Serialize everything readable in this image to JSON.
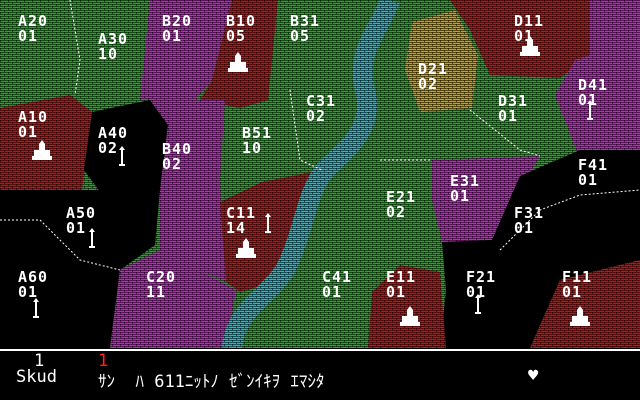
{
  "colors": {
    "green": "#22aa22",
    "magenta": "#cc22cc",
    "red": "#cc1111",
    "black": "#000000",
    "river": "#22bbcc",
    "yellow": "#c8a010"
  },
  "regions": [
    {
      "id": "A20",
      "units": "01",
      "owner": "green"
    },
    {
      "id": "A30",
      "units": "10",
      "owner": "green"
    },
    {
      "id": "B20",
      "units": "01",
      "owner": "magenta"
    },
    {
      "id": "B10",
      "units": "05",
      "owner": "red"
    },
    {
      "id": "B31",
      "units": "05",
      "owner": "green"
    },
    {
      "id": "D21",
      "units": "02",
      "owner": "yellow"
    },
    {
      "id": "D11",
      "units": "01",
      "owner": "red"
    },
    {
      "id": "D41",
      "units": "01",
      "owner": "magenta"
    },
    {
      "id": "A10",
      "units": "01",
      "owner": "red"
    },
    {
      "id": "A40",
      "units": "02",
      "owner": "black"
    },
    {
      "id": "C31",
      "units": "02",
      "owner": "green"
    },
    {
      "id": "D31",
      "units": "01",
      "owner": "green"
    },
    {
      "id": "B40",
      "units": "02",
      "owner": "magenta"
    },
    {
      "id": "B51",
      "units": "10",
      "owner": "green"
    },
    {
      "id": "F41",
      "units": "01",
      "owner": "black"
    },
    {
      "id": "E31",
      "units": "01",
      "owner": "magenta"
    },
    {
      "id": "A50",
      "units": "01",
      "owner": "black"
    },
    {
      "id": "E21",
      "units": "02",
      "owner": "green"
    },
    {
      "id": "F31",
      "units": "01",
      "owner": "black"
    },
    {
      "id": "C11",
      "units": "14",
      "owner": "red"
    },
    {
      "id": "A60",
      "units": "01",
      "owner": "black"
    },
    {
      "id": "C20",
      "units": "11",
      "owner": "magenta"
    },
    {
      "id": "C41",
      "units": "01",
      "owner": "green"
    },
    {
      "id": "E11",
      "units": "01",
      "owner": "red"
    },
    {
      "id": "F21",
      "units": "01",
      "owner": "black"
    },
    {
      "id": "F11",
      "units": "01",
      "owner": "red"
    }
  ],
  "status": {
    "counter_white": "1",
    "counter_red": "1",
    "message_player": "Skud",
    "message_rest": "ｻﾝ  ﾊ 611ﾆｯﾄﾉ ｾﾞﾝｲｷｦ ｴﾏｼﾀ",
    "heart": "♥"
  }
}
